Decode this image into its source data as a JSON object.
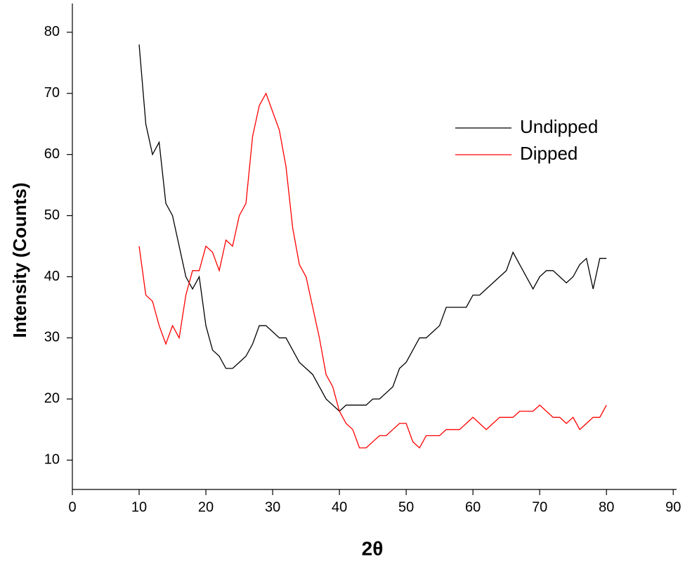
{
  "chart_data": {
    "type": "line",
    "x_label": "2θ",
    "y_label": "Intensity (Counts)",
    "x": [
      10,
      11,
      12,
      13,
      14,
      15,
      16,
      17,
      18,
      19,
      20,
      21,
      22,
      23,
      24,
      25,
      26,
      27,
      28,
      29,
      30,
      31,
      32,
      33,
      34,
      35,
      36,
      37,
      38,
      39,
      40,
      41,
      42,
      43,
      44,
      45,
      46,
      47,
      48,
      49,
      50,
      51,
      52,
      53,
      54,
      55,
      56,
      57,
      58,
      59,
      60,
      61,
      62,
      63,
      64,
      65,
      66,
      67,
      68,
      69,
      70,
      71,
      72,
      73,
      74,
      75,
      76,
      77,
      78,
      79,
      80
    ],
    "series": [
      {
        "name": "Undipped",
        "color": "#000000",
        "values": [
          78,
          65,
          60,
          62,
          52,
          50,
          45,
          40,
          38,
          40,
          32,
          28,
          27,
          25,
          25,
          26,
          27,
          29,
          32,
          32,
          31,
          30,
          30,
          28,
          26,
          25,
          24,
          22,
          20,
          19,
          18,
          19,
          19,
          19,
          19,
          20,
          20,
          21,
          22,
          25,
          26,
          28,
          30,
          30,
          31,
          32,
          35,
          35,
          35,
          35,
          37,
          37,
          38,
          39,
          40,
          41,
          44,
          42,
          40,
          38,
          40,
          41,
          41,
          40,
          39,
          40,
          42,
          43,
          38,
          43,
          43
        ]
      },
      {
        "name": "Dipped",
        "color": "#ff0000",
        "values": [
          45,
          37,
          36,
          32,
          29,
          32,
          30,
          37,
          41,
          41,
          45,
          44,
          41,
          46,
          45,
          50,
          52,
          63,
          68,
          70,
          67,
          64,
          58,
          48,
          42,
          40,
          35,
          30,
          24,
          22,
          18,
          16,
          15,
          12,
          12,
          13,
          14,
          14,
          15,
          16,
          16,
          13,
          12,
          14,
          14,
          14,
          15,
          15,
          15,
          16,
          17,
          16,
          15,
          16,
          17,
          17,
          17,
          18,
          18,
          18,
          19,
          18,
          17,
          17,
          16,
          17,
          15,
          16,
          17,
          17,
          19
        ]
      }
    ],
    "xlim": [
      0,
      90.5
    ],
    "xticks": [
      0,
      10,
      20,
      30,
      40,
      50,
      60,
      70,
      80,
      90
    ],
    "ylim": [
      5.2,
      84.7
    ],
    "yticks": [
      10,
      20,
      30,
      40,
      50,
      60,
      70,
      80
    ]
  }
}
